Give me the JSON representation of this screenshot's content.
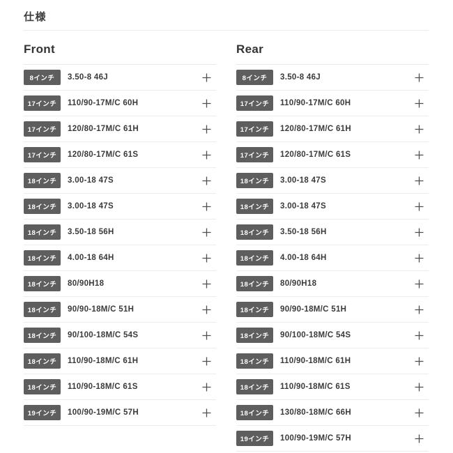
{
  "page_title": "仕様",
  "colors": {
    "badge_bg": "#5e5e5e",
    "badge_text": "#ffffff",
    "divider": "#ededed",
    "text": "#3a3a3a",
    "plus_icon": "#4f4f4f"
  },
  "columns": [
    {
      "heading": "Front",
      "rows": [
        {
          "badge": "8インチ",
          "spec": "3.50-8 46J"
        },
        {
          "badge": "17インチ",
          "spec": "110/90-17M/C 60H"
        },
        {
          "badge": "17インチ",
          "spec": "120/80-17M/C 61H"
        },
        {
          "badge": "17インチ",
          "spec": "120/80-17M/C 61S"
        },
        {
          "badge": "18インチ",
          "spec": "3.00-18 47S"
        },
        {
          "badge": "18インチ",
          "spec": "3.00-18 47S"
        },
        {
          "badge": "18インチ",
          "spec": "3.50-18 56H"
        },
        {
          "badge": "18インチ",
          "spec": "4.00-18 64H"
        },
        {
          "badge": "18インチ",
          "spec": "80/90H18"
        },
        {
          "badge": "18インチ",
          "spec": "90/90-18M/C 51H"
        },
        {
          "badge": "18インチ",
          "spec": "90/100-18M/C 54S"
        },
        {
          "badge": "18インチ",
          "spec": "110/90-18M/C 61H"
        },
        {
          "badge": "18インチ",
          "spec": "110/90-18M/C 61S"
        },
        {
          "badge": "19インチ",
          "spec": "100/90-19M/C 57H"
        }
      ]
    },
    {
      "heading": "Rear",
      "rows": [
        {
          "badge": "8インチ",
          "spec": "3.50-8 46J"
        },
        {
          "badge": "17インチ",
          "spec": "110/90-17M/C 60H"
        },
        {
          "badge": "17インチ",
          "spec": "120/80-17M/C 61H"
        },
        {
          "badge": "17インチ",
          "spec": "120/80-17M/C 61S"
        },
        {
          "badge": "18インチ",
          "spec": "3.00-18 47S"
        },
        {
          "badge": "18インチ",
          "spec": "3.00-18 47S"
        },
        {
          "badge": "18インチ",
          "spec": "3.50-18 56H"
        },
        {
          "badge": "18インチ",
          "spec": "4.00-18 64H"
        },
        {
          "badge": "18インチ",
          "spec": "80/90H18"
        },
        {
          "badge": "18インチ",
          "spec": "90/90-18M/C 51H"
        },
        {
          "badge": "18インチ",
          "spec": "90/100-18M/C 54S"
        },
        {
          "badge": "18インチ",
          "spec": "110/90-18M/C 61H"
        },
        {
          "badge": "18インチ",
          "spec": "110/90-18M/C 61S"
        },
        {
          "badge": "18インチ",
          "spec": "130/80-18M/C 66H"
        },
        {
          "badge": "19インチ",
          "spec": "100/90-19M/C 57H"
        }
      ]
    }
  ]
}
